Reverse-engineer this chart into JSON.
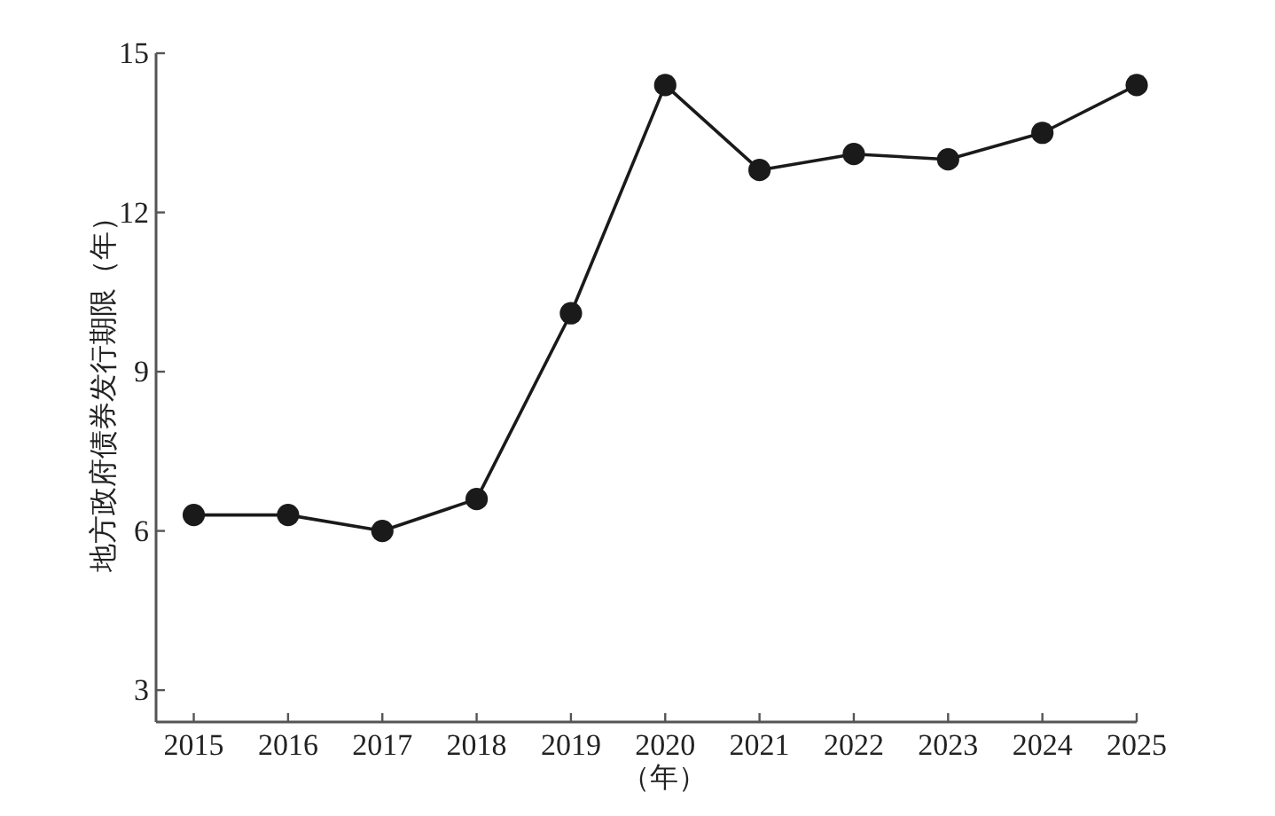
{
  "chart_data": {
    "type": "line",
    "xlabel": "（年）",
    "ylabel": "地方政府债券发行期限（年）",
    "x": [
      2015,
      2016,
      2017,
      2018,
      2019,
      2020,
      2021,
      2022,
      2023,
      2024,
      2025
    ],
    "values": [
      6.3,
      6.3,
      6.0,
      6.6,
      10.1,
      14.4,
      12.8,
      13.1,
      13.0,
      13.5,
      14.4
    ],
    "color": "#1a1a1a",
    "marker": "circle",
    "line_style": "solid",
    "xlim": [
      2014.6,
      2025
    ],
    "ylim": [
      2.4,
      15
    ],
    "xticks": [
      2015,
      2016,
      2017,
      2018,
      2019,
      2020,
      2021,
      2022,
      2023,
      2024,
      2025
    ],
    "yticks": [
      3,
      6,
      9,
      12,
      15
    ]
  }
}
